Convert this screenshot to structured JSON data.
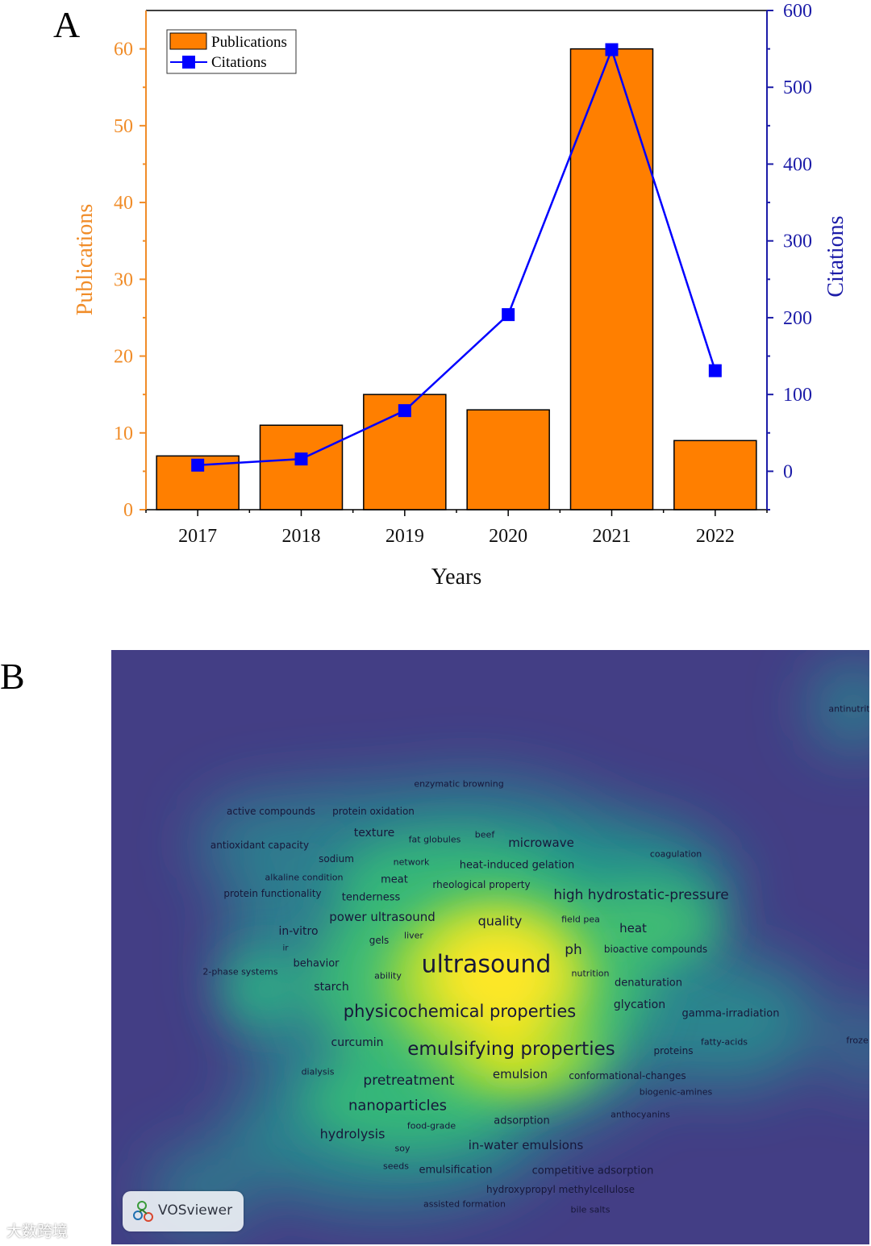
{
  "panelA": {
    "letter": "A"
  },
  "panelB": {
    "letter": "B"
  },
  "chart_data": {
    "type": "bar",
    "title": "",
    "xlabel": "Years",
    "ylabel": "Publications",
    "y2label": "Citations",
    "categories": [
      "2017",
      "2018",
      "2019",
      "2020",
      "2021",
      "2022"
    ],
    "series": [
      {
        "name": "Publications",
        "kind": "bar",
        "axis": "left",
        "values": [
          7,
          11,
          15,
          13,
          60,
          9
        ]
      },
      {
        "name": "Citations",
        "kind": "line",
        "axis": "right",
        "values": [
          8,
          16,
          79,
          204,
          549,
          131
        ]
      }
    ],
    "ylim": [
      0,
      65
    ],
    "y2lim": [
      -50,
      600
    ],
    "yticks": [
      "0",
      "10",
      "20",
      "30",
      "40",
      "50",
      "60"
    ],
    "y2ticks": [
      "0",
      "100",
      "200",
      "300",
      "400",
      "500",
      "600"
    ],
    "legend": [
      "Publications",
      "Citations"
    ],
    "legend_position": "top-left",
    "colors": {
      "bars": "#ff7f00",
      "line": "#0000ff",
      "left_axis": "#f08c28",
      "right_axis": "#1c1ca8"
    }
  },
  "vosmap": {
    "keywords": [
      {
        "text": "ultrasound",
        "size": 30
      },
      {
        "text": "physicochemical properties",
        "size": 21
      },
      {
        "text": "emulsifying properties",
        "size": 23
      },
      {
        "text": "high hydrostatic-pressure",
        "size": 17
      },
      {
        "text": "enzymatic browning",
        "size": 11
      },
      {
        "text": "active compounds",
        "size": 12
      },
      {
        "text": "protein oxidation",
        "size": 12
      },
      {
        "text": "texture",
        "size": 14
      },
      {
        "text": "fat globules",
        "size": 11
      },
      {
        "text": "beef",
        "size": 11
      },
      {
        "text": "microwave",
        "size": 15
      },
      {
        "text": "antioxidant capacity",
        "size": 12
      },
      {
        "text": "sodium",
        "size": 12
      },
      {
        "text": "network",
        "size": 11
      },
      {
        "text": "heat-induced gelation",
        "size": 13
      },
      {
        "text": "coagulation",
        "size": 11
      },
      {
        "text": "alkaline condition",
        "size": 11
      },
      {
        "text": "meat",
        "size": 13
      },
      {
        "text": "rheological property",
        "size": 12
      },
      {
        "text": "protein functionality",
        "size": 12
      },
      {
        "text": "tenderness",
        "size": 13
      },
      {
        "text": "power ultrasound",
        "size": 15
      },
      {
        "text": "quality",
        "size": 16
      },
      {
        "text": "field pea",
        "size": 11
      },
      {
        "text": "heat",
        "size": 15
      },
      {
        "text": "in-vitro",
        "size": 14
      },
      {
        "text": "gels",
        "size": 12
      },
      {
        "text": "liver",
        "size": 11
      },
      {
        "text": "ir",
        "size": 10
      },
      {
        "text": "ph",
        "size": 17
      },
      {
        "text": "bioactive compounds",
        "size": 12
      },
      {
        "text": "behavior",
        "size": 13
      },
      {
        "text": "2-phase systems",
        "size": 11
      },
      {
        "text": "ability",
        "size": 11
      },
      {
        "text": "nutrition",
        "size": 11
      },
      {
        "text": "denaturation",
        "size": 13
      },
      {
        "text": "starch",
        "size": 14
      },
      {
        "text": "glycation",
        "size": 14
      },
      {
        "text": "gamma-irradiation",
        "size": 13
      },
      {
        "text": "curcumin",
        "size": 14
      },
      {
        "text": "fatty-acids",
        "size": 11
      },
      {
        "text": "proteins",
        "size": 12
      },
      {
        "text": "dialysis",
        "size": 11
      },
      {
        "text": "pretreatment",
        "size": 17
      },
      {
        "text": "emulsion",
        "size": 15
      },
      {
        "text": "conformational-changes",
        "size": 12
      },
      {
        "text": "biogenic-amines",
        "size": 11
      },
      {
        "text": "nanoparticles",
        "size": 18
      },
      {
        "text": "anthocyanins",
        "size": 11
      },
      {
        "text": "adsorption",
        "size": 13
      },
      {
        "text": "food-grade",
        "size": 11
      },
      {
        "text": "hydrolysis",
        "size": 16
      },
      {
        "text": "soy",
        "size": 11
      },
      {
        "text": "in-water emulsions",
        "size": 15
      },
      {
        "text": "seeds",
        "size": 11
      },
      {
        "text": "emulsification",
        "size": 13
      },
      {
        "text": "competitive adsorption",
        "size": 13
      },
      {
        "text": "hydroxypropyl methylcellulose",
        "size": 12
      },
      {
        "text": "assisted formation",
        "size": 11
      },
      {
        "text": "bile salts",
        "size": 11
      },
      {
        "text": "antinutrit",
        "size": 11
      },
      {
        "text": "froze",
        "size": 11
      }
    ]
  },
  "vos_badge": {
    "label": "VOSviewer"
  },
  "watermark": {
    "text": "大数跨境"
  }
}
